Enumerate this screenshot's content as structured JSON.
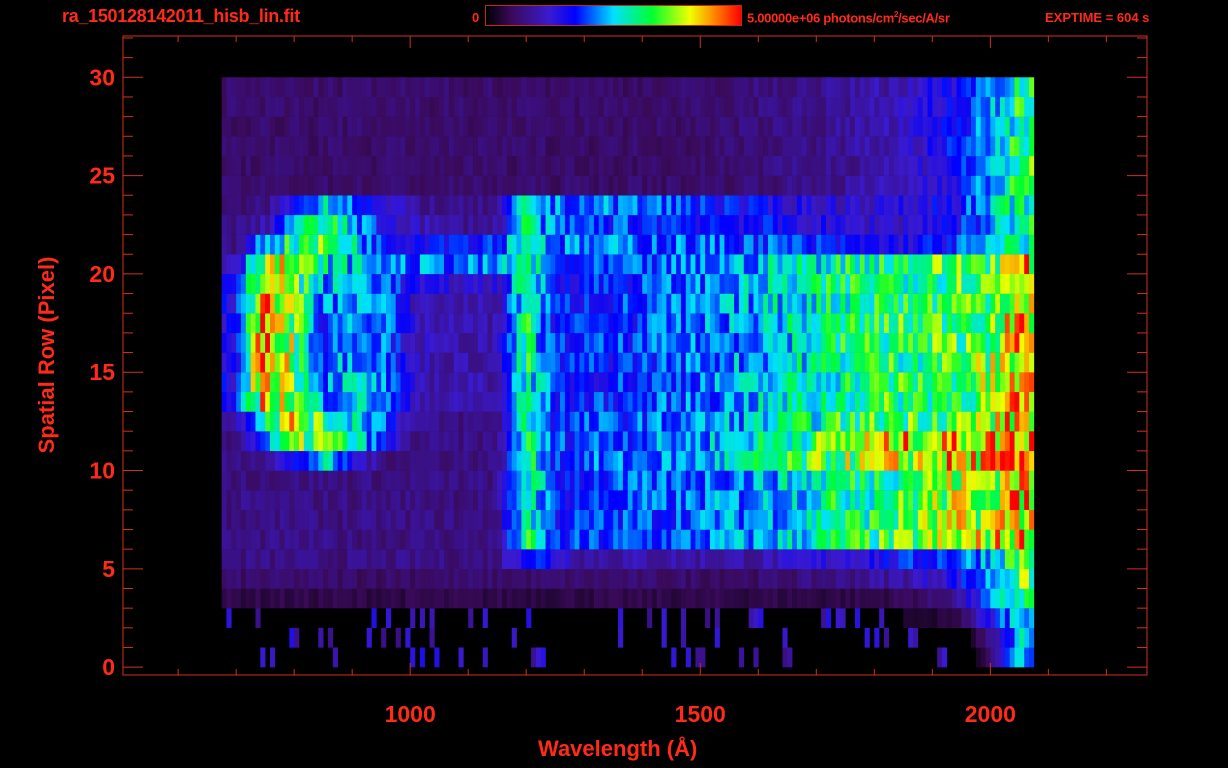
{
  "header": {
    "filename": "ra_150128142011_hisb_lin.fit",
    "colorbar_min_label": "0",
    "colorbar_max_label": "5.00000e+06 photons/cm",
    "colorbar_unit_sup": "2",
    "colorbar_unit_rest": "/sec/A/sr",
    "exptime": "EXPTIME = 604 s"
  },
  "colors": {
    "axis": "#d03020",
    "text": "#ff2a1a",
    "background": "#000000",
    "colormap": [
      "#000000",
      "#3a0a5a",
      "#3a1ad0",
      "#0000ff",
      "#00e0ff",
      "#00ff30",
      "#f0ff00",
      "#ff8000",
      "#ff0000"
    ]
  },
  "chart_data": {
    "type": "heatmap",
    "title": "ra_150128142011_hisb_lin.fit",
    "xlabel": "Wavelength (Å)",
    "ylabel": "Spatial Row (Pixel)",
    "xlim": [
      505,
      2270
    ],
    "ylim": [
      -0.4,
      32.1
    ],
    "x_ticks": [
      1000,
      1500,
      2000
    ],
    "x_tick_labels": [
      "1000",
      "1500",
      "2000"
    ],
    "x_minor_step": 100,
    "y_ticks": [
      0,
      5,
      10,
      15,
      20,
      25,
      30
    ],
    "y_tick_labels": [
      "0",
      "5",
      "10",
      "15",
      "20",
      "25",
      "30"
    ],
    "y_minor_step": 1,
    "color_range": [
      0,
      5000000
    ],
    "color_units": "photons/cm^2/sec/A/sr",
    "value_scale": "fraction of color_range max",
    "x_bin_centers": [
      700,
      750,
      800,
      850,
      900,
      950,
      1000,
      1050,
      1100,
      1150,
      1200,
      1250,
      1300,
      1350,
      1400,
      1450,
      1500,
      1550,
      1600,
      1650,
      1700,
      1750,
      1800,
      1850,
      1900,
      1950,
      2000,
      2050
    ],
    "x_bin_width": 50,
    "rows": [
      0,
      1,
      2,
      3,
      4,
      5,
      6,
      7,
      8,
      9,
      10,
      11,
      12,
      13,
      14,
      15,
      16,
      17,
      18,
      19,
      20,
      21,
      22,
      23,
      24,
      25,
      26,
      27,
      28,
      29
    ],
    "values": [
      [
        0,
        0,
        0,
        0,
        0,
        0,
        0,
        0,
        0,
        0,
        0,
        0,
        0,
        0,
        0,
        0,
        0,
        0,
        0,
        0,
        0,
        0,
        0,
        0,
        0,
        0,
        0.1,
        0.5
      ],
      [
        0,
        0,
        0,
        0,
        0,
        0,
        0,
        0,
        0,
        0,
        0,
        0,
        0,
        0,
        0,
        0,
        0,
        0,
        0,
        0,
        0,
        0,
        0,
        0,
        0,
        0,
        0.15,
        0.5
      ],
      [
        0,
        0,
        0,
        0,
        0,
        0,
        0,
        0,
        0,
        0,
        0,
        0,
        0,
        0,
        0,
        0,
        0,
        0,
        0,
        0,
        0,
        0,
        0,
        0.05,
        0.05,
        0.1,
        0.3,
        0.55
      ],
      [
        0.08,
        0.08,
        0.08,
        0.08,
        0.08,
        0.08,
        0.08,
        0.08,
        0.08,
        0.08,
        0.08,
        0.08,
        0.08,
        0.08,
        0.08,
        0.08,
        0.08,
        0.08,
        0.08,
        0.08,
        0.08,
        0.08,
        0.08,
        0.1,
        0.12,
        0.2,
        0.4,
        0.6
      ],
      [
        0.12,
        0.12,
        0.12,
        0.12,
        0.12,
        0.12,
        0.12,
        0.12,
        0.12,
        0.12,
        0.12,
        0.12,
        0.12,
        0.12,
        0.12,
        0.12,
        0.12,
        0.12,
        0.12,
        0.13,
        0.14,
        0.16,
        0.18,
        0.2,
        0.25,
        0.32,
        0.45,
        0.65
      ],
      [
        0.15,
        0.15,
        0.15,
        0.15,
        0.15,
        0.15,
        0.15,
        0.15,
        0.15,
        0.15,
        0.4,
        0.3,
        0.2,
        0.2,
        0.2,
        0.2,
        0.2,
        0.2,
        0.2,
        0.22,
        0.25,
        0.28,
        0.3,
        0.33,
        0.38,
        0.42,
        0.5,
        0.7
      ],
      [
        0.15,
        0.15,
        0.15,
        0.15,
        0.15,
        0.15,
        0.15,
        0.15,
        0.15,
        0.15,
        0.6,
        0.36,
        0.37,
        0.38,
        0.39,
        0.4,
        0.42,
        0.44,
        0.46,
        0.5,
        0.55,
        0.6,
        0.62,
        0.65,
        0.7,
        0.74,
        0.78,
        0.85
      ],
      [
        0.15,
        0.15,
        0.15,
        0.15,
        0.15,
        0.15,
        0.15,
        0.15,
        0.15,
        0.15,
        0.6,
        0.36,
        0.37,
        0.38,
        0.39,
        0.4,
        0.42,
        0.44,
        0.46,
        0.5,
        0.55,
        0.6,
        0.62,
        0.65,
        0.7,
        0.74,
        0.78,
        0.85
      ],
      [
        0.15,
        0.15,
        0.15,
        0.15,
        0.15,
        0.15,
        0.15,
        0.15,
        0.15,
        0.15,
        0.6,
        0.36,
        0.37,
        0.38,
        0.39,
        0.4,
        0.42,
        0.44,
        0.46,
        0.5,
        0.55,
        0.6,
        0.62,
        0.65,
        0.7,
        0.74,
        0.78,
        0.85
      ],
      [
        0.15,
        0.15,
        0.15,
        0.15,
        0.15,
        0.15,
        0.15,
        0.15,
        0.15,
        0.15,
        0.6,
        0.36,
        0.37,
        0.38,
        0.39,
        0.4,
        0.42,
        0.44,
        0.46,
        0.5,
        0.55,
        0.6,
        0.62,
        0.65,
        0.7,
        0.74,
        0.78,
        0.85
      ],
      [
        0.15,
        0.2,
        0.3,
        0.5,
        0.3,
        0.15,
        0.15,
        0.15,
        0.15,
        0.15,
        0.6,
        0.38,
        0.4,
        0.41,
        0.42,
        0.44,
        0.46,
        0.5,
        0.55,
        0.6,
        0.65,
        0.7,
        0.72,
        0.76,
        0.8,
        0.82,
        0.84,
        0.92
      ],
      [
        0.15,
        0.4,
        0.65,
        0.7,
        0.55,
        0.35,
        0.15,
        0.15,
        0.15,
        0.15,
        0.6,
        0.38,
        0.4,
        0.41,
        0.42,
        0.44,
        0.46,
        0.5,
        0.55,
        0.6,
        0.66,
        0.72,
        0.76,
        0.8,
        0.82,
        0.84,
        0.86,
        0.92
      ],
      [
        0.2,
        0.65,
        0.8,
        0.6,
        0.55,
        0.45,
        0.2,
        0.15,
        0.15,
        0.15,
        0.6,
        0.36,
        0.38,
        0.39,
        0.4,
        0.42,
        0.44,
        0.47,
        0.5,
        0.54,
        0.58,
        0.62,
        0.64,
        0.66,
        0.68,
        0.7,
        0.74,
        0.85
      ],
      [
        0.3,
        0.85,
        0.7,
        0.45,
        0.5,
        0.45,
        0.25,
        0.2,
        0.2,
        0.2,
        0.6,
        0.35,
        0.36,
        0.37,
        0.38,
        0.4,
        0.42,
        0.45,
        0.48,
        0.52,
        0.55,
        0.6,
        0.62,
        0.63,
        0.65,
        0.67,
        0.7,
        0.82
      ],
      [
        0.3,
        0.95,
        0.7,
        0.45,
        0.5,
        0.45,
        0.25,
        0.2,
        0.2,
        0.2,
        0.6,
        0.35,
        0.36,
        0.37,
        0.38,
        0.4,
        0.42,
        0.45,
        0.48,
        0.52,
        0.55,
        0.6,
        0.62,
        0.63,
        0.65,
        0.67,
        0.7,
        0.82
      ],
      [
        0.3,
        0.95,
        0.7,
        0.42,
        0.5,
        0.45,
        0.25,
        0.2,
        0.2,
        0.2,
        0.6,
        0.35,
        0.36,
        0.37,
        0.38,
        0.4,
        0.42,
        0.45,
        0.48,
        0.52,
        0.55,
        0.6,
        0.62,
        0.63,
        0.65,
        0.67,
        0.7,
        0.82
      ],
      [
        0.3,
        0.95,
        0.7,
        0.35,
        0.5,
        0.45,
        0.25,
        0.2,
        0.2,
        0.2,
        0.6,
        0.35,
        0.36,
        0.37,
        0.38,
        0.4,
        0.42,
        0.45,
        0.48,
        0.52,
        0.55,
        0.6,
        0.62,
        0.63,
        0.65,
        0.67,
        0.7,
        0.82
      ],
      [
        0.3,
        0.95,
        0.7,
        0.35,
        0.5,
        0.45,
        0.25,
        0.2,
        0.2,
        0.2,
        0.6,
        0.35,
        0.36,
        0.37,
        0.38,
        0.4,
        0.42,
        0.45,
        0.48,
        0.52,
        0.55,
        0.6,
        0.62,
        0.63,
        0.65,
        0.67,
        0.7,
        0.82
      ],
      [
        0.3,
        0.95,
        0.7,
        0.42,
        0.5,
        0.45,
        0.25,
        0.2,
        0.2,
        0.2,
        0.6,
        0.35,
        0.36,
        0.37,
        0.38,
        0.4,
        0.42,
        0.45,
        0.48,
        0.52,
        0.55,
        0.6,
        0.62,
        0.63,
        0.65,
        0.67,
        0.7,
        0.82
      ],
      [
        0.3,
        0.85,
        0.7,
        0.45,
        0.5,
        0.45,
        0.3,
        0.25,
        0.25,
        0.25,
        0.6,
        0.35,
        0.36,
        0.37,
        0.38,
        0.4,
        0.42,
        0.45,
        0.48,
        0.52,
        0.55,
        0.6,
        0.62,
        0.63,
        0.65,
        0.67,
        0.7,
        0.82
      ],
      [
        0.25,
        0.8,
        0.7,
        0.55,
        0.5,
        0.45,
        0.42,
        0.42,
        0.42,
        0.42,
        0.6,
        0.35,
        0.36,
        0.37,
        0.38,
        0.4,
        0.42,
        0.45,
        0.48,
        0.52,
        0.55,
        0.6,
        0.62,
        0.63,
        0.65,
        0.67,
        0.7,
        0.82
      ],
      [
        0.15,
        0.5,
        0.6,
        0.65,
        0.55,
        0.35,
        0.35,
        0.38,
        0.38,
        0.38,
        0.62,
        0.42,
        0.42,
        0.42,
        0.42,
        0.42,
        0.4,
        0.4,
        0.4,
        0.38,
        0.35,
        0.32,
        0.3,
        0.3,
        0.33,
        0.38,
        0.45,
        0.6
      ],
      [
        0.15,
        0.2,
        0.5,
        0.6,
        0.5,
        0.3,
        0.25,
        0.18,
        0.18,
        0.18,
        0.6,
        0.38,
        0.38,
        0.38,
        0.38,
        0.38,
        0.36,
        0.35,
        0.33,
        0.3,
        0.28,
        0.25,
        0.25,
        0.25,
        0.3,
        0.35,
        0.42,
        0.6
      ],
      [
        0.12,
        0.15,
        0.3,
        0.55,
        0.45,
        0.25,
        0.2,
        0.15,
        0.15,
        0.15,
        0.55,
        0.42,
        0.42,
        0.42,
        0.42,
        0.4,
        0.38,
        0.34,
        0.3,
        0.28,
        0.26,
        0.25,
        0.25,
        0.26,
        0.3,
        0.36,
        0.45,
        0.6
      ],
      [
        0.12,
        0.12,
        0.12,
        0.12,
        0.12,
        0.12,
        0.12,
        0.12,
        0.12,
        0.12,
        0.12,
        0.12,
        0.12,
        0.12,
        0.12,
        0.12,
        0.12,
        0.13,
        0.14,
        0.15,
        0.16,
        0.18,
        0.2,
        0.22,
        0.28,
        0.35,
        0.45,
        0.62
      ],
      [
        0.12,
        0.12,
        0.12,
        0.12,
        0.12,
        0.12,
        0.12,
        0.12,
        0.12,
        0.12,
        0.12,
        0.12,
        0.12,
        0.12,
        0.12,
        0.12,
        0.12,
        0.13,
        0.14,
        0.15,
        0.16,
        0.18,
        0.2,
        0.22,
        0.28,
        0.35,
        0.45,
        0.62
      ],
      [
        0.12,
        0.12,
        0.12,
        0.12,
        0.12,
        0.12,
        0.12,
        0.12,
        0.12,
        0.12,
        0.12,
        0.12,
        0.12,
        0.12,
        0.12,
        0.12,
        0.12,
        0.13,
        0.14,
        0.15,
        0.16,
        0.18,
        0.2,
        0.22,
        0.28,
        0.35,
        0.45,
        0.62
      ],
      [
        0.12,
        0.12,
        0.12,
        0.12,
        0.12,
        0.12,
        0.12,
        0.12,
        0.12,
        0.12,
        0.12,
        0.12,
        0.12,
        0.12,
        0.12,
        0.12,
        0.12,
        0.13,
        0.14,
        0.15,
        0.16,
        0.18,
        0.2,
        0.22,
        0.28,
        0.35,
        0.45,
        0.62
      ],
      [
        0.12,
        0.12,
        0.12,
        0.12,
        0.12,
        0.12,
        0.12,
        0.12,
        0.12,
        0.12,
        0.12,
        0.12,
        0.12,
        0.12,
        0.12,
        0.12,
        0.12,
        0.13,
        0.14,
        0.15,
        0.16,
        0.18,
        0.2,
        0.22,
        0.28,
        0.35,
        0.45,
        0.62
      ],
      [
        0.12,
        0.12,
        0.12,
        0.12,
        0.12,
        0.12,
        0.12,
        0.12,
        0.12,
        0.12,
        0.12,
        0.12,
        0.12,
        0.12,
        0.12,
        0.12,
        0.12,
        0.13,
        0.14,
        0.15,
        0.16,
        0.18,
        0.2,
        0.22,
        0.28,
        0.35,
        0.45,
        0.62
      ]
    ]
  }
}
